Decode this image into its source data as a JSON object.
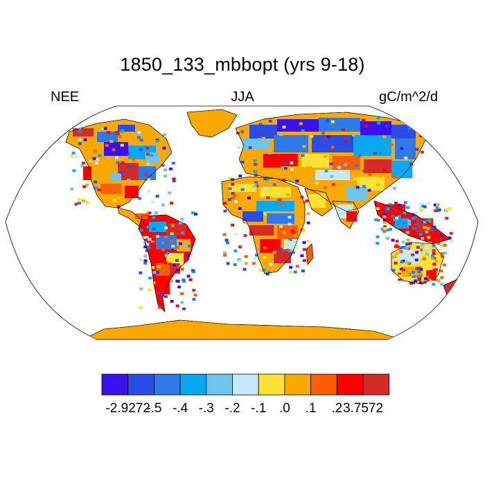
{
  "title": "1850_133_mbbopt (yrs 9-18)",
  "left_label": "NEE",
  "center_label": "JJA",
  "right_label": "gC/m^2/d",
  "legend": {
    "colors": [
      "#3a12f0",
      "#2a4de8",
      "#2e7ae6",
      "#0aa8f2",
      "#6ec4ec",
      "#c6e8f7",
      "#fde135",
      "#fba800",
      "#fd5e00",
      "#fb0201",
      "#d62a2a"
    ],
    "labels": [
      "-2.9272",
      "-.5",
      "-.4",
      "-.3",
      "-.2",
      "-.1",
      ".0",
      ".1",
      ".2",
      "3.7572"
    ]
  },
  "map": {
    "projection": "Robinson",
    "ocean_color": "#ffffff",
    "antarctica_color": "#fba800"
  }
}
